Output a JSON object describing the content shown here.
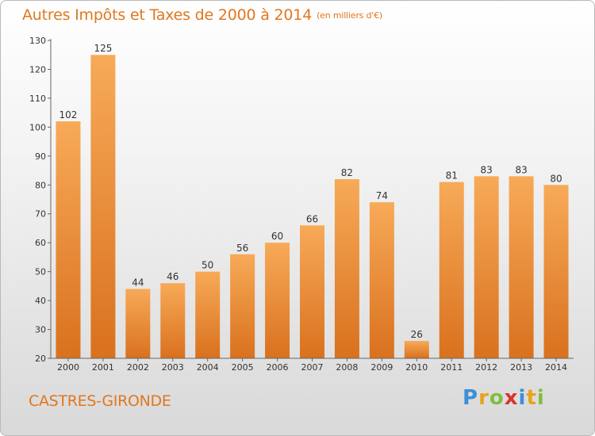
{
  "header": {
    "title": "Autres Impôts et Taxes de 2000 à 2014",
    "unit": "(en milliers d'€)"
  },
  "commune": "CASTRES-GIRONDE",
  "logo": {
    "letters": [
      "P",
      "r",
      "o",
      "x",
      "i",
      "t",
      "i"
    ],
    "colors": [
      "#3d8fd6",
      "#e8a21c",
      "#7fbf3f",
      "#d9342b",
      "#3d8fd6",
      "#e8a21c",
      "#7fbf3f"
    ]
  },
  "colors": {
    "bar_light": "#f7aa58",
    "bar_dark": "#d9711e",
    "accent": "#e0771f"
  },
  "chart_data": {
    "type": "bar",
    "categories": [
      "2000",
      "2001",
      "2002",
      "2003",
      "2004",
      "2005",
      "2006",
      "2007",
      "2008",
      "2009",
      "2010",
      "2011",
      "2012",
      "2013",
      "2014"
    ],
    "values": [
      102,
      125,
      44,
      46,
      50,
      56,
      60,
      66,
      82,
      74,
      26,
      81,
      83,
      83,
      80
    ],
    "title": "Autres Impôts et Taxes de 2000 à 2014",
    "xlabel": "",
    "ylabel": "",
    "ylim": [
      20,
      130
    ],
    "yticks": [
      20,
      30,
      40,
      50,
      60,
      70,
      80,
      90,
      100,
      110,
      120,
      130
    ],
    "grid": false,
    "data_labels": true
  }
}
